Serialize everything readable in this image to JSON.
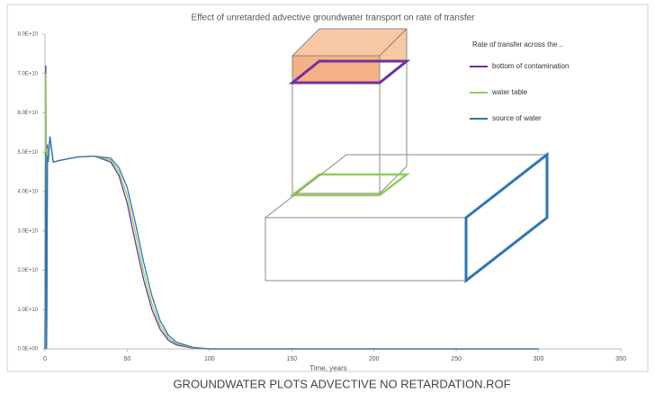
{
  "chart_data": {
    "type": "line",
    "title": "Effect of unretarded advective groundwater transport on rate of transfer",
    "x_label": "Time, years",
    "legend_title": "Rate of transfer across the ..",
    "legend": "upper right",
    "grid": false,
    "xlim": [
      0,
      350
    ],
    "xticks": [
      0,
      50,
      100,
      150,
      200,
      250,
      300,
      350
    ],
    "ylim": [
      0,
      80000000000.0
    ],
    "yticks": [
      {
        "value": 0,
        "label": "0.0E+00"
      },
      {
        "value": 10000000000.0,
        "label": "1.0E+10"
      },
      {
        "value": 20000000000.0,
        "label": "2.0E+10"
      },
      {
        "value": 30000000000.0,
        "label": "3.0E+10"
      },
      {
        "value": 40000000000.0,
        "label": "4.0E+10"
      },
      {
        "value": 50000000000.0,
        "label": "5.0E+10"
      },
      {
        "value": 60000000000.0,
        "label": "6.0E+10"
      },
      {
        "value": 70000000000.0,
        "label": "7.0E+10"
      },
      {
        "value": 80000000000.0,
        "label": "8.0E+10"
      }
    ],
    "x": [
      0,
      0.5,
      1,
      1.5,
      2,
      3,
      5,
      10,
      20,
      30,
      40,
      45,
      50,
      55,
      60,
      65,
      70,
      75,
      80,
      90,
      100,
      150,
      200,
      250,
      300
    ],
    "series": [
      {
        "name": "bottom of contamination",
        "color": "#7030a0",
        "values": [
          0,
          72000000000.0,
          0,
          52000000000.0,
          48000000000.0,
          54000000000.0,
          47500000000.0,
          48000000000.0,
          48800000000.0,
          49000000000.0,
          47500000000.0,
          44000000000.0,
          37000000000.0,
          27000000000.0,
          17500000000.0,
          10000000000.0,
          5000000000.0,
          2200000000.0,
          1000000000.0,
          200000000.0,
          0,
          0,
          0,
          0,
          0
        ]
      },
      {
        "name": "water table",
        "color": "#92d050",
        "values": [
          0,
          70000000000.0,
          0,
          51000000000.0,
          47800000000.0,
          54000000000.0,
          47500000000.0,
          48000000000.0,
          48800000000.0,
          49000000000.0,
          48000000000.0,
          45000000000.0,
          39000000000.0,
          29500000000.0,
          19500000000.0,
          11500000000.0,
          6000000000.0,
          2800000000.0,
          1300000000.0,
          300000000.0,
          0,
          0,
          0,
          0,
          0
        ]
      },
      {
        "name": "source of water",
        "color": "#2e75b6",
        "values": [
          0,
          50000000000.0,
          0,
          49000000000.0,
          47500000000.0,
          54000000000.0,
          47500000000.0,
          48000000000.0,
          48800000000.0,
          49000000000.0,
          48500000000.0,
          46000000000.0,
          41000000000.0,
          32000000000.0,
          22000000000.0,
          13500000000.0,
          7200000000.0,
          3500000000.0,
          1700000000.0,
          400000000.0,
          0,
          0,
          0,
          0,
          0
        ]
      }
    ]
  },
  "caption": "GROUNDWATER PLOTS ADVECTIVE NO RETARDATION.ROF"
}
